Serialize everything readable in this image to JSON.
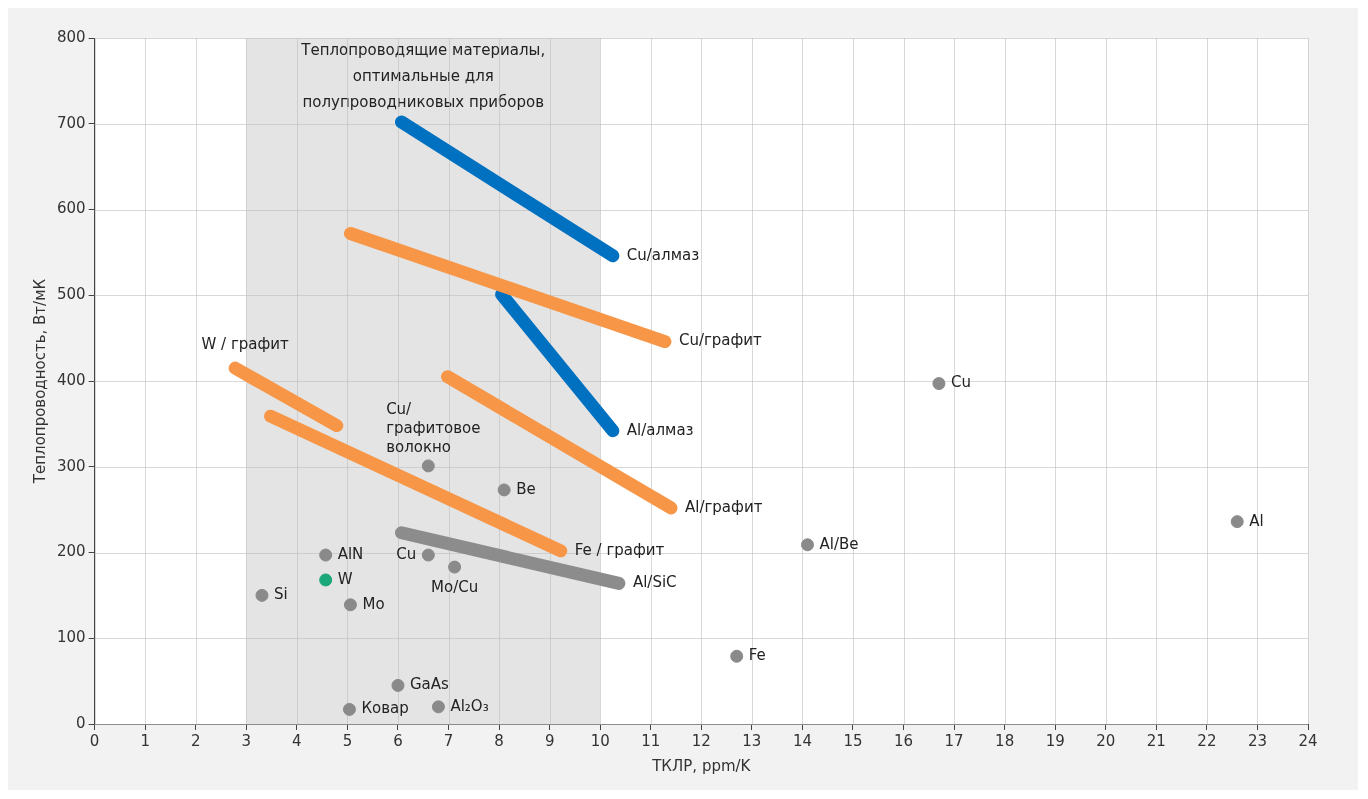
{
  "chart_data": {
    "type": "scatter",
    "xlabel": "ТКЛР, ppm/K",
    "ylabel": "Теплопроводность, Вт/мК",
    "xlim": [
      0,
      24
    ],
    "xticks": [
      0,
      1,
      2,
      3,
      4,
      5,
      6,
      7,
      8,
      9,
      10,
      11,
      12,
      13,
      14,
      15,
      16,
      17,
      18,
      19,
      20,
      21,
      22,
      23,
      24
    ],
    "ylim": [
      0,
      800
    ],
    "yticks": [
      0,
      100,
      200,
      300,
      400,
      500,
      600,
      700,
      800
    ],
    "grid": true,
    "legend": false,
    "marker": "circle",
    "bands": [
      {
        "axis": "x",
        "from": 3,
        "to": 10,
        "label": "Теплопроводящие материалы,\nоптимальные для\nполупроводниковых приборов",
        "color": "#e4e4e4"
      }
    ],
    "series": [
      {
        "name": "Cu/алмаз",
        "type": "line",
        "marker": "none",
        "color": "#0070c0",
        "x": [
          6.07,
          10.25
        ],
        "values": [
          702,
          546
        ]
      },
      {
        "name": "Cu/графит",
        "type": "line",
        "marker": "none",
        "color": "#f79646",
        "x": [
          5.06,
          11.28
        ],
        "values": [
          572,
          446
        ]
      },
      {
        "name": "Al/алмаз",
        "type": "line",
        "marker": "none",
        "color": "#0070c0",
        "x": [
          8.05,
          10.25
        ],
        "values": [
          501,
          342
        ]
      },
      {
        "name": "W / графит",
        "type": "line",
        "marker": "none",
        "color": "#f79646",
        "x": [
          2.78,
          4.79
        ],
        "values": [
          415,
          348
        ]
      },
      {
        "name": "Fe / графит",
        "type": "line",
        "marker": "none",
        "color": "#f79646",
        "x": [
          3.48,
          9.22
        ],
        "values": [
          359,
          202
        ]
      },
      {
        "name": "Al/графит",
        "type": "line",
        "marker": "none",
        "color": "#f79646",
        "x": [
          6.98,
          11.4
        ],
        "values": [
          405,
          252
        ]
      },
      {
        "name": "Al/SiC",
        "type": "line",
        "marker": "none",
        "color": "#8c8c8c",
        "x": [
          6.07,
          10.37
        ],
        "values": [
          223,
          164
        ]
      },
      {
        "name": "Si",
        "color": "#8a8a8a",
        "x": [
          3.31
        ],
        "values": [
          150
        ]
      },
      {
        "name": "AlN",
        "color": "#8a8a8a",
        "x": [
          4.57
        ],
        "values": [
          197
        ]
      },
      {
        "name": "W",
        "color": "#1aa77a",
        "x": [
          4.57
        ],
        "values": [
          168
        ]
      },
      {
        "name": "Mo",
        "color": "#8a8a8a",
        "x": [
          5.06
        ],
        "values": [
          139
        ]
      },
      {
        "name": "Ковар",
        "color": "#8a8a8a",
        "x": [
          5.04
        ],
        "values": [
          17
        ]
      },
      {
        "name": "GaAs",
        "color": "#8a8a8a",
        "x": [
          6.0
        ],
        "values": [
          45
        ]
      },
      {
        "name": "Al₂O₃",
        "color": "#8a8a8a",
        "x": [
          6.8
        ],
        "values": [
          20
        ]
      },
      {
        "name": "Mo/Cu",
        "color": "#8a8a8a",
        "x": [
          7.12
        ],
        "values": [
          183
        ]
      },
      {
        "name": "Cu",
        "color": "#8a8a8a",
        "x": [
          6.6
        ],
        "values": [
          197
        ]
      },
      {
        "name": "Cu/\nграфитовое\nволокно",
        "color": "#8a8a8a",
        "x": [
          6.6
        ],
        "values": [
          301
        ]
      },
      {
        "name": "Be",
        "color": "#8a8a8a",
        "x": [
          8.1
        ],
        "values": [
          273
        ]
      },
      {
        "name": "Fe",
        "color": "#8a8a8a",
        "x": [
          12.7
        ],
        "values": [
          79
        ]
      },
      {
        "name": "Al/Be",
        "color": "#8a8a8a",
        "x": [
          14.1
        ],
        "values": [
          209
        ]
      },
      {
        "name": "Cu",
        "color": "#8a8a8a",
        "x": [
          16.7
        ],
        "values": [
          397
        ]
      },
      {
        "name": "Al",
        "color": "#8a8a8a",
        "x": [
          22.6
        ],
        "values": [
          236
        ]
      }
    ]
  }
}
